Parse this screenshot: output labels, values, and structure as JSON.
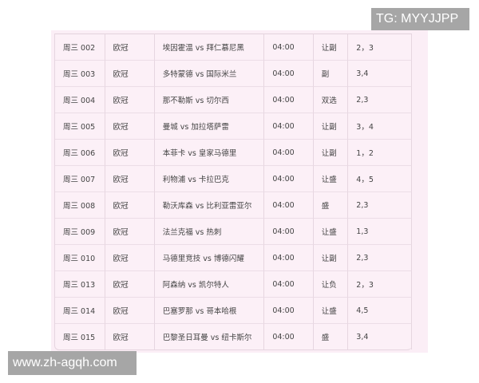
{
  "watermark_top": "TG: MYYJJPP",
  "watermark_bottom": "www.zh-agqh.com",
  "rows": [
    {
      "id": "周三 002",
      "league": "欧冠",
      "match": "埃因霍温 vs 拜仁慕尼黑",
      "time": "04:00",
      "pick": "让副",
      "result": "2，3"
    },
    {
      "id": "周三 003",
      "league": "欧冠",
      "match": "多特蒙德 vs 国际米兰",
      "time": "04:00",
      "pick": "副",
      "result": "3,4"
    },
    {
      "id": "周三 004",
      "league": "欧冠",
      "match": "那不勒斯 vs 切尔西",
      "time": "04:00",
      "pick": "双选",
      "result": "2,3"
    },
    {
      "id": "周三 005",
      "league": "欧冠",
      "match": "曼城 vs 加拉塔萨雷",
      "time": "04:00",
      "pick": "让副",
      "result": "3，4"
    },
    {
      "id": "周三 006",
      "league": "欧冠",
      "match": "本菲卡 vs 皇家马德里",
      "time": "04:00",
      "pick": "让副",
      "result": "1，2"
    },
    {
      "id": "周三 007",
      "league": "欧冠",
      "match": "利物浦 vs 卡拉巴克",
      "time": "04:00",
      "pick": "让盛",
      "result": "4，5"
    },
    {
      "id": "周三 008",
      "league": "欧冠",
      "match": "勒沃库森 vs 比利亚雷亚尔",
      "time": "04:00",
      "pick": "盛",
      "result": "2,3"
    },
    {
      "id": "周三 009",
      "league": "欧冠",
      "match": "法兰克福 vs 热刺",
      "time": "04:00",
      "pick": "让盛",
      "result": "1,3"
    },
    {
      "id": "周三 010",
      "league": "欧冠",
      "match": "马德里竞技 vs 博德闪耀",
      "time": "04:00",
      "pick": "让副",
      "result": "2,3"
    },
    {
      "id": "周三 013",
      "league": "欧冠",
      "match": "阿森纳 vs 凯尔特人",
      "time": "04:00",
      "pick": "让负",
      "result": "2，3"
    },
    {
      "id": "周三 014",
      "league": "欧冠",
      "match": "巴塞罗那 vs 哥本哈根",
      "time": "04:00",
      "pick": "让盛",
      "result": "4,5"
    },
    {
      "id": "周三 015",
      "league": "欧冠",
      "match": "巴黎圣日耳曼 vs 纽卡斯尔",
      "time": "04:00",
      "pick": "盛",
      "result": "3,4"
    }
  ]
}
